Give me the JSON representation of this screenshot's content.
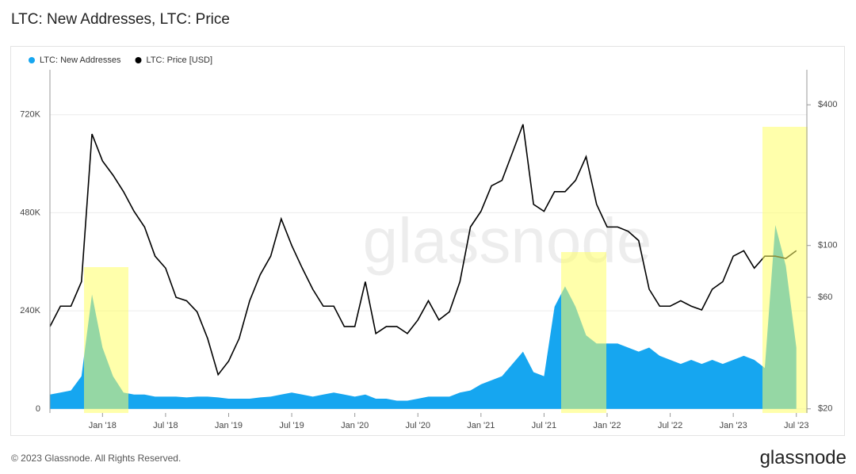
{
  "chart_data": {
    "type": "area-line",
    "title": "LTC: New Addresses, LTC: Price",
    "footer": "© 2023 Glassnode. All Rights Reserved.",
    "brand": "glassnode",
    "watermark": "glassnode",
    "x": [
      "2017-08",
      "2017-09",
      "2017-10",
      "2017-11",
      "2017-12",
      "2018-01",
      "2018-02",
      "2018-03",
      "2018-04",
      "2018-05",
      "2018-06",
      "2018-07",
      "2018-08",
      "2018-09",
      "2018-10",
      "2018-11",
      "2018-12",
      "2019-01",
      "2019-02",
      "2019-03",
      "2019-04",
      "2019-05",
      "2019-06",
      "2019-07",
      "2019-08",
      "2019-09",
      "2019-10",
      "2019-11",
      "2019-12",
      "2020-01",
      "2020-02",
      "2020-03",
      "2020-04",
      "2020-05",
      "2020-06",
      "2020-07",
      "2020-08",
      "2020-09",
      "2020-10",
      "2020-11",
      "2020-12",
      "2021-01",
      "2021-02",
      "2021-03",
      "2021-04",
      "2021-05",
      "2021-06",
      "2021-07",
      "2021-08",
      "2021-09",
      "2021-10",
      "2021-11",
      "2021-12",
      "2022-01",
      "2022-02",
      "2022-03",
      "2022-04",
      "2022-05",
      "2022-06",
      "2022-07",
      "2022-08",
      "2022-09",
      "2022-10",
      "2022-11",
      "2022-12",
      "2023-01",
      "2023-02",
      "2023-03",
      "2023-04",
      "2023-05",
      "2023-06",
      "2023-07"
    ],
    "xlim": [
      "2017-08",
      "2023-08"
    ],
    "xticks": [
      {
        "value": "2018-01",
        "label": "Jan '18"
      },
      {
        "value": "2018-07",
        "label": "Jul '18"
      },
      {
        "value": "2019-01",
        "label": "Jan '19"
      },
      {
        "value": "2019-07",
        "label": "Jul '19"
      },
      {
        "value": "2020-01",
        "label": "Jan '20"
      },
      {
        "value": "2020-07",
        "label": "Jul '20"
      },
      {
        "value": "2021-01",
        "label": "Jan '21"
      },
      {
        "value": "2021-07",
        "label": "Jul '21"
      },
      {
        "value": "2022-01",
        "label": "Jan '22"
      },
      {
        "value": "2022-07",
        "label": "Jul '22"
      },
      {
        "value": "2023-01",
        "label": "Jan '23"
      },
      {
        "value": "2023-07",
        "label": "Jul '23"
      }
    ],
    "ylim": [
      -10000,
      830000
    ],
    "yticks": [
      {
        "value": 0,
        "label": "0"
      },
      {
        "value": 240000,
        "label": "240K"
      },
      {
        "value": 480000,
        "label": "480K"
      },
      {
        "value": 720000,
        "label": "720K"
      }
    ],
    "y2lim": [
      19.2,
      565
    ],
    "y2log": true,
    "y2ticks": [
      {
        "value": 20,
        "label": "$20"
      },
      {
        "value": 60,
        "label": "$60"
      },
      {
        "value": 100,
        "label": "$100"
      },
      {
        "value": 400,
        "label": "$400"
      }
    ],
    "grid": true,
    "series": [
      {
        "name": "LTC: New Addresses",
        "color": "#16a6f0",
        "kind": "area",
        "values": [
          35000,
          40000,
          45000,
          80000,
          280000,
          150000,
          80000,
          40000,
          35000,
          35000,
          30000,
          30000,
          30000,
          28000,
          30000,
          30000,
          28000,
          25000,
          25000,
          25000,
          28000,
          30000,
          35000,
          40000,
          35000,
          30000,
          35000,
          40000,
          35000,
          30000,
          35000,
          25000,
          25000,
          20000,
          20000,
          25000,
          30000,
          30000,
          30000,
          40000,
          45000,
          60000,
          70000,
          80000,
          110000,
          140000,
          90000,
          80000,
          250000,
          300000,
          250000,
          180000,
          160000,
          160000,
          160000,
          150000,
          140000,
          150000,
          130000,
          120000,
          110000,
          120000,
          110000,
          120000,
          110000,
          120000,
          130000,
          120000,
          100000,
          450000,
          350000,
          150000
        ]
      },
      {
        "name": "LTC: Price [USD]",
        "color": "#000000",
        "kind": "line",
        "axis": "y2",
        "values": [
          45,
          55,
          55,
          70,
          300,
          230,
          200,
          170,
          140,
          120,
          90,
          80,
          60,
          58,
          52,
          40,
          28,
          32,
          40,
          58,
          75,
          90,
          130,
          100,
          80,
          65,
          55,
          55,
          45,
          45,
          70,
          42,
          45,
          45,
          42,
          48,
          58,
          48,
          52,
          70,
          120,
          140,
          180,
          190,
          250,
          330,
          150,
          140,
          170,
          170,
          190,
          240,
          150,
          120,
          120,
          115,
          105,
          65,
          55,
          55,
          58,
          55,
          53,
          65,
          70,
          90,
          95,
          80,
          90,
          90,
          88,
          95
        ]
      }
    ]
  }
}
